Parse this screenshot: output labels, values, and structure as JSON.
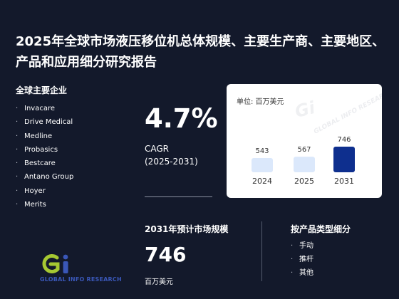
{
  "report": {
    "title": "2025年全球市场液压移位机总体规模、主要生产商、主要地区、产品和应用细分研究报告"
  },
  "companies": {
    "heading": "全球主要企业",
    "bullet": "·",
    "items": [
      "Invacare",
      "Drive Medical",
      "Medline",
      "Probasics",
      "Bestcare",
      "Antano Group",
      "Hoyer",
      "Merits"
    ]
  },
  "cagr": {
    "value": "4.7%",
    "label": "CAGR",
    "period": "(2025-2031)"
  },
  "chart_data": {
    "type": "bar",
    "unit_label": "单位: 百万美元",
    "categories": [
      "2024",
      "2025",
      "2031"
    ],
    "values": [
      543,
      567,
      746
    ],
    "value_labels": [
      "543",
      "567",
      "746"
    ],
    "colors": [
      "#dbe8fb",
      "#dbe8fb",
      "#0e2f8e"
    ],
    "label_color": "#333333"
  },
  "market": {
    "heading": "2031年预计市场规模",
    "value": "746",
    "unit": "百万美元"
  },
  "types": {
    "heading": "按产品类型细分",
    "bullet": "·",
    "items": [
      "手动",
      "推杆",
      "其他"
    ]
  },
  "brand": {
    "mark": "Gi",
    "name": "GLOBAL INFO RESEARCH",
    "watermark": "GLOBAL INFO RESEARCH",
    "colors": {
      "g": "#a6c832",
      "i": "#3a57b8"
    }
  },
  "colors": {
    "background": "#13192b",
    "accent": "#0e2f8e"
  }
}
